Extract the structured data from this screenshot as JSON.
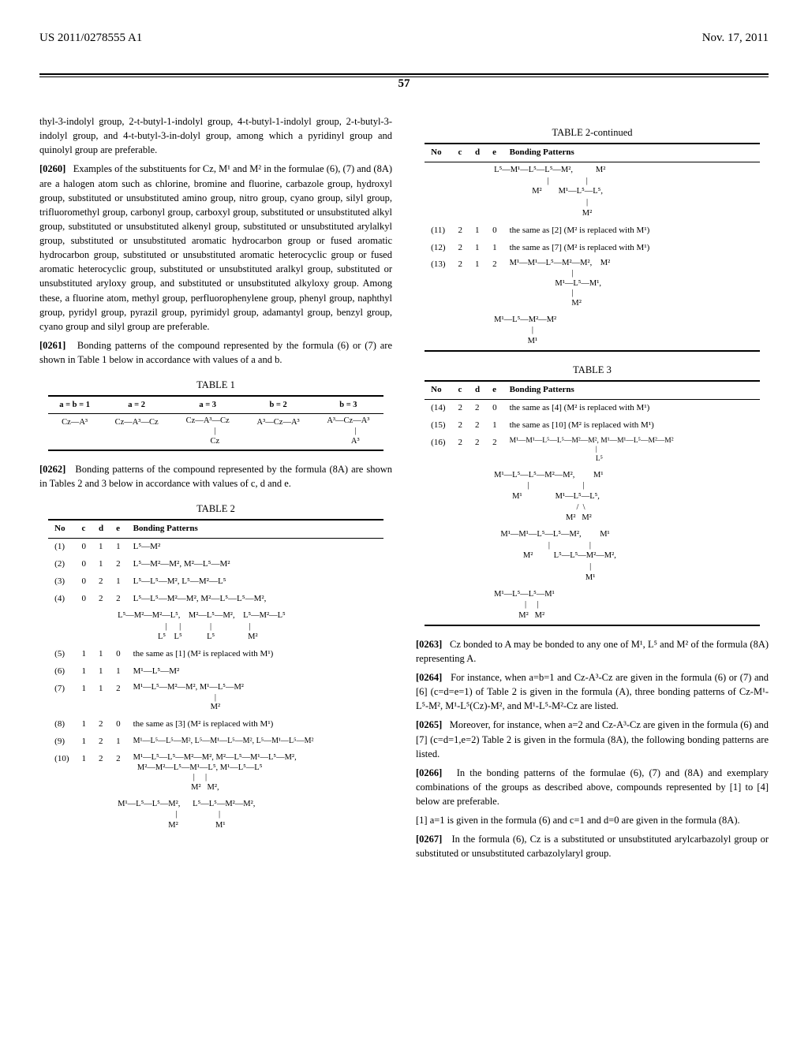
{
  "header": {
    "pub_no": "US 2011/0278555 A1",
    "pub_date": "Nov. 17, 2011",
    "page_num": "57"
  },
  "left_col": {
    "para_top": "thyl-3-indolyl group, 2-t-butyl-1-indolyl group, 4-t-butyl-1-indolyl group, 2-t-butyl-3-indolyl group, and 4-t-butyl-3-in-dolyl group, among which a pyridinyl group and quinolyl group are preferable.",
    "p0260_num": "[0260]",
    "p0260": "Examples of the substituents for Cz, M¹ and M² in the formulae (6), (7) and (8A) are a halogen atom such as chlorine, bromine and fluorine, carbazole group, hydroxyl group, substituted or unsubstituted amino group, nitro group, cyano group, silyl group, trifluoromethyl group, carbonyl group, carboxyl group, substituted or unsubstituted alkyl group, substituted or unsubstituted alkenyl group, substituted or unsubstituted arylalkyl group, substituted or unsubstituted aromatic hydrocarbon group or fused aromatic hydrocarbon group, substituted or unsubstituted aromatic heterocyclic group or fused aromatic heterocyclic group, substituted or unsubstituted aralkyl group, substituted or unsubstituted aryloxy group, and substituted or unsubstituted alkyloxy group. Among these, a fluorine atom, methyl group, perfluorophenylene group, phenyl group, naphthyl group, pyridyl group, pyrazil group, pyrimidyl group, adamantyl group, benzyl group, cyano group and silyl group are preferable.",
    "p0261_num": "[0261]",
    "p0261": "Bonding patterns of the compound represented by the formula (6) or (7) are shown in Table 1 below in accordance with values of a and b.",
    "p0262_num": "[0262]",
    "p0262": "Bonding patterns of the compound represented by the formula (8A) are shown in Tables 2 and 3 below in accordance with values of c, d and e.",
    "table1": {
      "title": "TABLE 1",
      "headers": [
        "a = b = 1",
        "a = 2",
        "a = 3",
        "b = 2",
        "b = 3"
      ],
      "row": [
        "Cz—A³",
        "Cz—A³—Cz",
        "Cz—A³—Cz\n       |\n       Cz",
        "A³—Cz—A³",
        "A³—Cz—A³\n       |\n       A³"
      ]
    },
    "table2": {
      "title": "TABLE 2",
      "col_headers": [
        "No",
        "c",
        "d",
        "e",
        "Bonding Patterns"
      ],
      "rows": [
        {
          "no": "(1)",
          "c": "0",
          "d": "1",
          "e": "1",
          "pat": "L⁵—M²"
        },
        {
          "no": "(2)",
          "c": "0",
          "d": "1",
          "e": "2",
          "pat": "L⁵—M²—M², M²—L⁵—M²"
        },
        {
          "no": "(3)",
          "c": "0",
          "d": "2",
          "e": "1",
          "pat": "L⁵—L⁵—M², L⁵—M²—L⁵"
        },
        {
          "no": "(4)",
          "c": "0",
          "d": "2",
          "e": "2",
          "pat": "L⁵—L⁵—M²—M², M²—L⁵—L⁵—M²,"
        }
      ],
      "row4_extra": "L⁵—M²—M²—L⁵,    M²—L⁵—M²,    L⁵—M²—L⁵\n      |      |              |                  |\n      L⁵    L⁵            L⁵                M²",
      "row5": {
        "no": "(5)",
        "c": "1",
        "d": "1",
        "e": "0",
        "pat": "the same as [1] (M² is replaced with M¹)"
      },
      "row6": {
        "no": "(6)",
        "c": "1",
        "d": "1",
        "e": "1",
        "pat": "M¹—L⁵—M²"
      },
      "row7": {
        "no": "(7)",
        "c": "1",
        "d": "1",
        "e": "2",
        "pat": "M¹—L⁵—M²—M², M¹—L⁵—M²\n                          |\n                          M²"
      },
      "row8": {
        "no": "(8)",
        "c": "1",
        "d": "2",
        "e": "0",
        "pat": "the same as [3] (M² is replaced with M¹)"
      },
      "row9": {
        "no": "(9)",
        "c": "1",
        "d": "2",
        "e": "1",
        "pat": "M¹—L⁵—L⁵—M², L⁵—M¹—L⁵—M², L⁵—M¹—L⁵—M²"
      },
      "row10": {
        "no": "(10)",
        "c": "1",
        "d": "2",
        "e": "2",
        "pat": "M¹—L⁵—L⁵—M²—M², M²—L⁵—M¹—L⁵—M²,\n  M²—M²—L⁵—M¹—L⁵, M¹—L⁵—L⁵\n                             |     |\n                            M²   M²,"
      },
      "row10_extra": "M¹—L⁵—L⁵—M²,      L⁵—L⁵—M²—M²,\n           |                    |\n          M²                  M¹"
    }
  },
  "right_col": {
    "table2_cont": {
      "title": "TABLE 2-continued",
      "col_headers": [
        "No",
        "c",
        "d",
        "e",
        "Bonding Patterns"
      ],
      "top_pattern": "L⁵—M¹—L⁵—L⁵—M²,           M²\n                 |                  |\n                 M²        M¹—L⁵—L⁵,\n                                    |\n                                    M²",
      "row11": {
        "no": "(11)",
        "c": "2",
        "d": "1",
        "e": "0",
        "pat": "the same as [2] (M² is replaced with M¹)"
      },
      "row12": {
        "no": "(12)",
        "c": "2",
        "d": "1",
        "e": "1",
        "pat": "the same as [7] (M² is replaced with M¹)"
      },
      "row13": {
        "no": "(13)",
        "c": "2",
        "d": "1",
        "e": "2",
        "pat": "M¹—M¹—L⁵—M²—M²,    M²\n                              |\n                      M¹—L⁵—M¹,\n                              |\n                              M²"
      },
      "row13_extra": "M¹—L⁵—M²—M²\n       |\n       M¹"
    },
    "table3": {
      "title": "TABLE 3",
      "col_headers": [
        "No",
        "c",
        "d",
        "e",
        "Bonding Patterns"
      ],
      "row14": {
        "no": "(14)",
        "c": "2",
        "d": "2",
        "e": "0",
        "pat": "the same as [4] (M² is replaced with M¹)"
      },
      "row15": {
        "no": "(15)",
        "c": "2",
        "d": "2",
        "e": "1",
        "pat": "the same as [10] (M² is replaced with M¹)"
      },
      "row16": {
        "no": "(16)",
        "c": "2",
        "d": "2",
        "e": "2",
        "pat": "M¹—M¹—L⁵—L⁵—M²—M², M¹—M¹—L⁵—M²—M²\n                                              |\n                                              L⁵"
      },
      "row16_ex1": "M¹—L⁵—L⁵—M²—M²,         M¹\n       |                          |\n       M¹                M¹—L⁵—L⁵,\n                               /  \\\n                             M²   M²",
      "row16_ex2": "M¹—M¹—L⁵—L⁵—M²,         M¹\n              |                   |\n              M²          L⁵—L⁵—M²—M²,\n                                  |\n                                  M¹",
      "row16_ex3": "M¹—L⁵—L⁵—M¹\n       |     |\n       M²   M²"
    },
    "p0263_num": "[0263]",
    "p0263": "Cz bonded to A may be bonded to any one of M¹, L⁵ and M² of the formula (8A) representing A.",
    "p0264_num": "[0264]",
    "p0264": "For instance, when a=b=1 and Cz-A³-Cz are given in the formula (6) or (7) and [6] (c=d=e=1) of Table 2 is given in the formula (A), three bonding patterns of Cz-M¹-L⁵-M², M¹-L⁵(Cz)-M², and M¹-L⁵-M²-Cz are listed.",
    "p0265_num": "[0265]",
    "p0265": "Moreover, for instance, when a=2 and Cz-A³-Cz are given in the formula (6) and [7] (c=d=1,e=2) Table 2 is given in the formula (8A), the following bonding patterns are listed.",
    "p0266_num": "[0266]",
    "p0266": "In the bonding patterns of the formulae (6), (7) and (8A) and exemplary combinations of the groups as described above, compounds represented by [1] to [4] below are preferable.",
    "p_bracket1": "[1] a=1 is given in the formula (6) and c=1 and d=0 are given in the formula (8A).",
    "p0267_num": "[0267]",
    "p0267": "In the formula (6), Cz is a substituted or unsubstituted arylcarbazolyl group or substituted or unsubstituted carbazolylaryl group."
  }
}
